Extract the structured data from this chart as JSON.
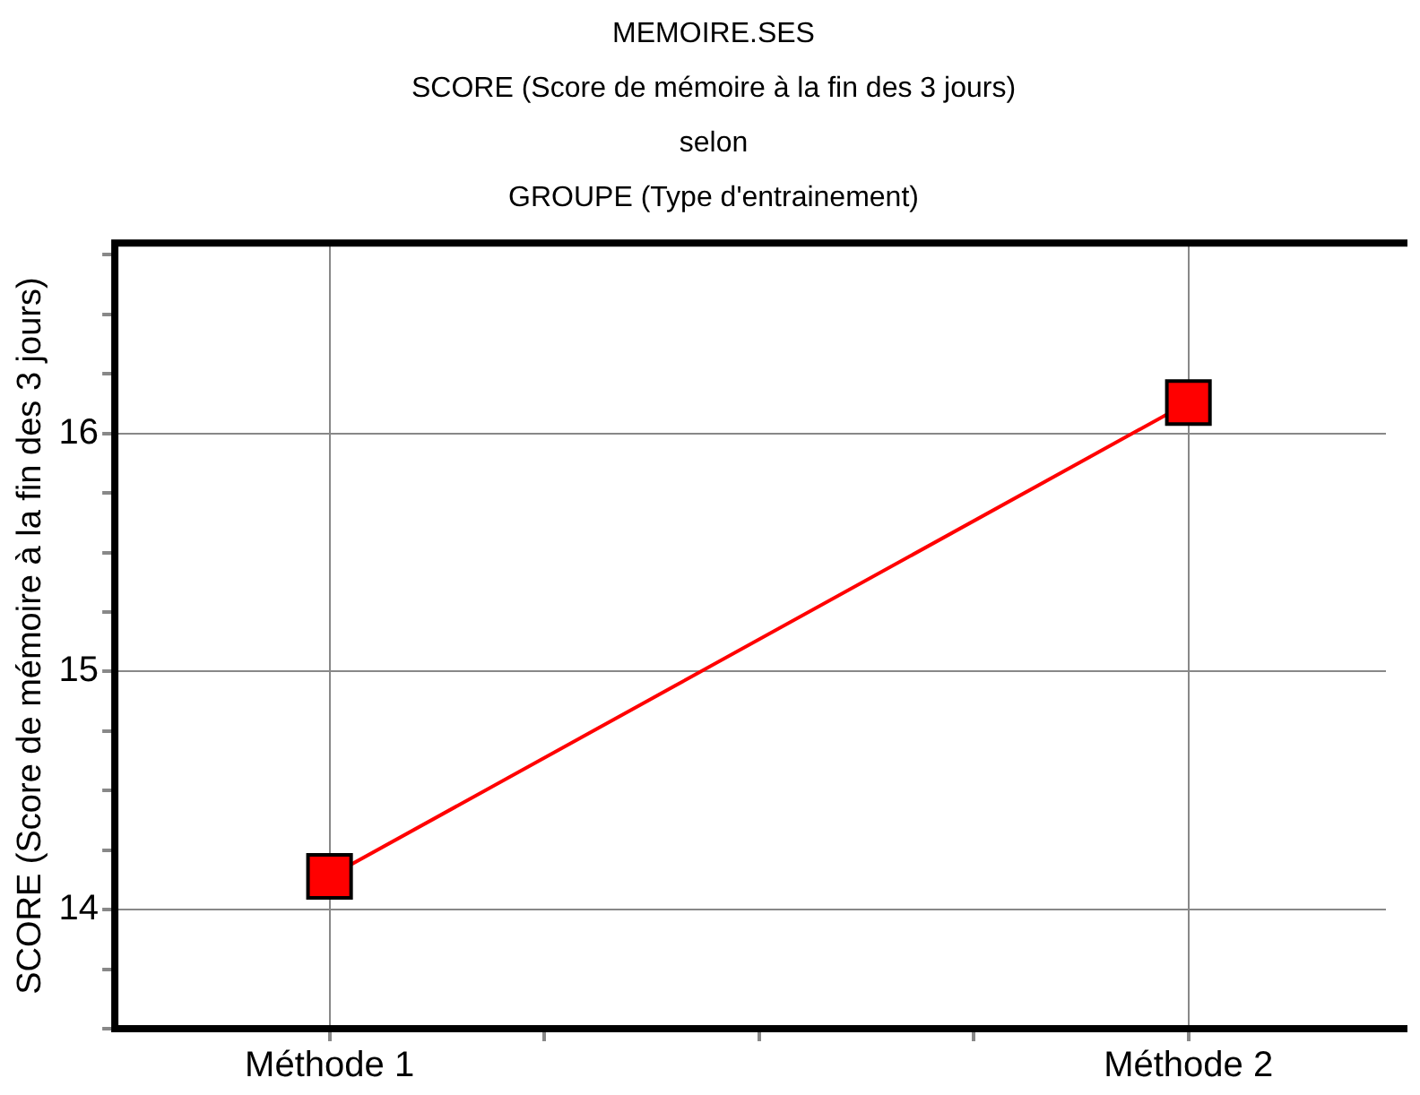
{
  "chart_data": {
    "type": "line",
    "title": "MEMOIRE.SES",
    "subtitle": "SCORE (Score de mémoire à la fin des 3 jours)\nselon\nGROUPE (Type d'entrainement)",
    "ylabel": "SCORE (Score de mémoire à la fin des 3 jours)",
    "categories": [
      "Méthode 1",
      "Méthode 2"
    ],
    "series": [
      {
        "color": "#ff0000",
        "values": [
          14.14,
          16.13
        ]
      }
    ],
    "ylim": [
      13.5,
      16.8
    ],
    "yticks": [
      {
        "value": 13.5,
        "label": null
      },
      {
        "value": 13.75,
        "label": null
      },
      14,
      {
        "value": 14.25,
        "label": null
      },
      {
        "value": 14.5,
        "label": null
      },
      {
        "value": 14.75,
        "label": null
      },
      15,
      {
        "value": 15.25,
        "label": null
      },
      {
        "value": 15.5,
        "label": null
      },
      {
        "value": 15.75,
        "label": null
      },
      16,
      {
        "value": 16.25,
        "label": null
      },
      {
        "value": 16.5,
        "label": null
      },
      {
        "value": 16.75,
        "label": null
      }
    ],
    "grid": true,
    "legend": false,
    "marker": "square",
    "line_style": "solid"
  }
}
